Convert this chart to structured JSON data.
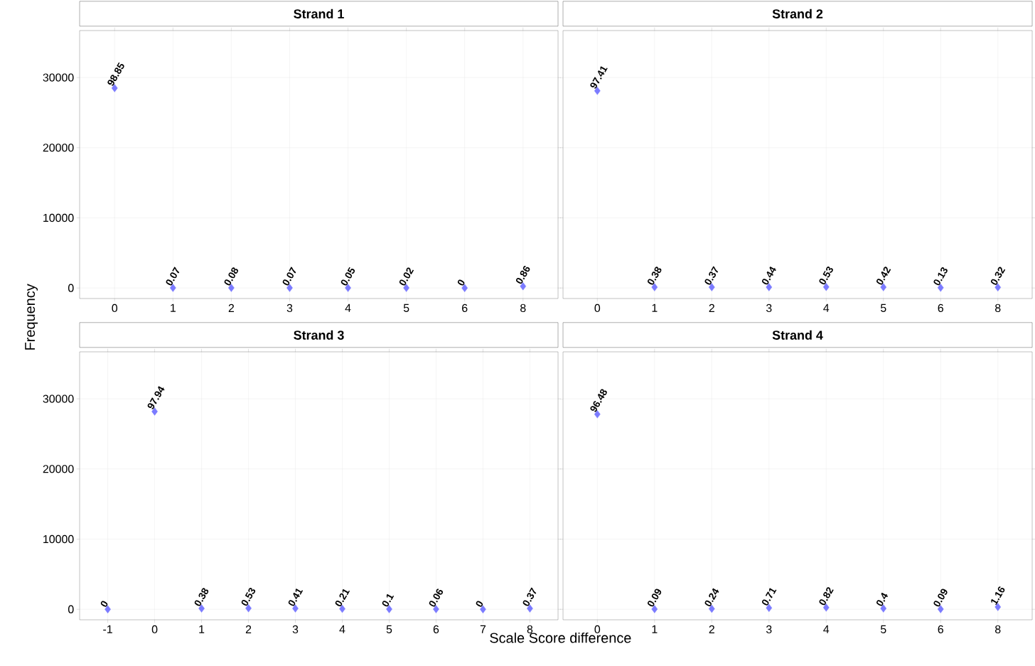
{
  "chart_data": [
    {
      "type": "scatter",
      "title": "Strand 1",
      "ylabel": "Frequency",
      "categories": [
        "0",
        "1",
        "2",
        "3",
        "4",
        "5",
        "6",
        "8"
      ],
      "values": [
        28500,
        20,
        20,
        20,
        10,
        10,
        0,
        250
      ],
      "color": "#7b7bff",
      "marker": "diamond",
      "ylim": [
        -1500,
        36700
      ],
      "yticks": [
        0,
        10000,
        20000,
        30000
      ],
      "grid": true,
      "annotations": [
        {
          "text": "98.85",
          "x": "0",
          "y": 28500
        },
        {
          "text": "0.07",
          "x": "1",
          "y": 20
        },
        {
          "text": "0.08",
          "x": "2",
          "y": 20
        },
        {
          "text": "0.07",
          "x": "3",
          "y": 20
        },
        {
          "text": "0.05",
          "x": "4",
          "y": 10
        },
        {
          "text": "0.02",
          "x": "5",
          "y": 10
        },
        {
          "text": "0",
          "x": "6",
          "y": 0
        },
        {
          "text": "0.86",
          "x": "8",
          "y": 250
        }
      ]
    },
    {
      "type": "scatter",
      "title": "Strand 2",
      "categories": [
        "0",
        "1",
        "2",
        "3",
        "4",
        "5",
        "6",
        "8"
      ],
      "values": [
        28100,
        110,
        110,
        130,
        150,
        120,
        40,
        90
      ],
      "color": "#7b7bff",
      "marker": "diamond",
      "ylim": [
        -1500,
        36700
      ],
      "yticks": [
        0,
        10000,
        20000,
        30000
      ],
      "grid": true,
      "tick_labels": "x",
      "annotations": [
        {
          "text": "97.41",
          "x": "0",
          "y": 28100
        },
        {
          "text": "0.38",
          "x": "1",
          "y": 110
        },
        {
          "text": "0.37",
          "x": "2",
          "y": 110
        },
        {
          "text": "0.44",
          "x": "3",
          "y": 130
        },
        {
          "text": "0.53",
          "x": "4",
          "y": 150
        },
        {
          "text": "0.42",
          "x": "5",
          "y": 120
        },
        {
          "text": "0.13",
          "x": "6",
          "y": 40
        },
        {
          "text": "0.32",
          "x": "8",
          "y": 90
        }
      ]
    },
    {
      "type": "scatter",
      "title": "Strand 3",
      "xlabel": "Scale Score difference",
      "categories": [
        "-1",
        "0",
        "1",
        "2",
        "3",
        "4",
        "5",
        "6",
        "7",
        "8"
      ],
      "values": [
        0,
        28200,
        110,
        150,
        120,
        60,
        30,
        20,
        0,
        110
      ],
      "color": "#7b7bff",
      "marker": "diamond",
      "ylim": [
        -1500,
        36700
      ],
      "yticks": [
        0,
        10000,
        20000,
        30000
      ],
      "grid": true,
      "annotations": [
        {
          "text": "0",
          "x": "-1",
          "y": 0
        },
        {
          "text": "97.94",
          "x": "0",
          "y": 28200
        },
        {
          "text": "0.38",
          "x": "1",
          "y": 110
        },
        {
          "text": "0.53",
          "x": "2",
          "y": 150
        },
        {
          "text": "0.41",
          "x": "3",
          "y": 120
        },
        {
          "text": "0.21",
          "x": "4",
          "y": 60
        },
        {
          "text": "0.1",
          "x": "5",
          "y": 30
        },
        {
          "text": "0.06",
          "x": "6",
          "y": 20
        },
        {
          "text": "0",
          "x": "7",
          "y": 0
        },
        {
          "text": "0.37",
          "x": "8",
          "y": 110
        }
      ]
    },
    {
      "type": "scatter",
      "title": "Strand 4",
      "categories": [
        "0",
        "1",
        "2",
        "3",
        "4",
        "5",
        "6",
        "8"
      ],
      "values": [
        27800,
        30,
        70,
        200,
        240,
        120,
        30,
        330
      ],
      "color": "#7b7bff",
      "marker": "diamond",
      "ylim": [
        -1500,
        36700
      ],
      "yticks": [
        0,
        10000,
        20000,
        30000
      ],
      "grid": true,
      "tick_labels": "x",
      "annotations": [
        {
          "text": "96.48",
          "x": "0",
          "y": 27800
        },
        {
          "text": "0.09",
          "x": "1",
          "y": 30
        },
        {
          "text": "0.24",
          "x": "2",
          "y": 70
        },
        {
          "text": "0.71",
          "x": "3",
          "y": 200
        },
        {
          "text": "0.82",
          "x": "4",
          "y": 240
        },
        {
          "text": "0.4",
          "x": "5",
          "y": 120
        },
        {
          "text": "0.09",
          "x": "6",
          "y": 30
        },
        {
          "text": "1.16",
          "x": "8",
          "y": 330
        }
      ]
    }
  ]
}
